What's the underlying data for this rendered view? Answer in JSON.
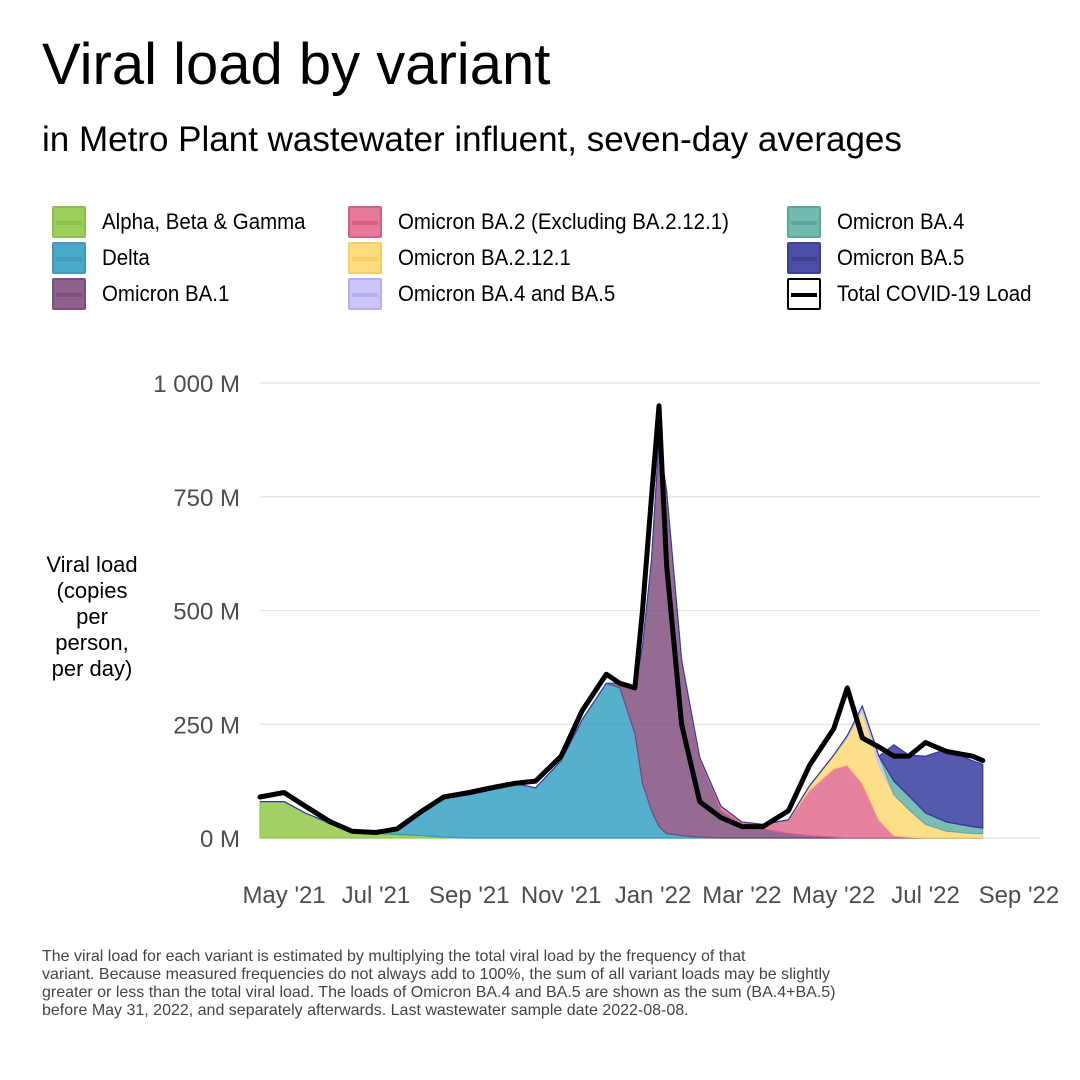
{
  "title": "Viral load by variant",
  "subtitle": "in Metro Plant wastewater influent, seven-day averages",
  "legend": [
    {
      "label": "Alpha, Beta & Gamma",
      "fill": "#8dc63f",
      "stroke": "#7ab32e",
      "icon": "alpha-beta-gamma-swatch-icon"
    },
    {
      "label": "Delta",
      "fill": "#2a9bc0",
      "stroke": "#2489b0",
      "icon": "delta-swatch-icon"
    },
    {
      "label": "Omicron BA.1",
      "fill": "#7b4679",
      "stroke": "#6b2e6b",
      "icon": "omicron-ba1-swatch-icon"
    },
    {
      "label": "Omicron BA.2 (Excluding BA.2.12.1)",
      "fill": "#e06288",
      "stroke": "#d0446e",
      "icon": "omicron-ba2-swatch-icon"
    },
    {
      "label": "Omicron BA.2.12.1",
      "fill": "#fdd66b",
      "stroke": "#f5c64a",
      "icon": "omicron-ba2121-swatch-icon"
    },
    {
      "label": "Omicron BA.4 and BA.5",
      "fill": "#c4bdf7",
      "stroke": "#a9a0f0",
      "icon": "omicron-ba4-ba5-swatch-icon"
    },
    {
      "label": "Omicron BA.4",
      "fill": "#5aada2",
      "stroke": "#3f9688",
      "icon": "omicron-ba4-swatch-icon"
    },
    {
      "label": "Omicron BA.5",
      "fill": "#2d2f9a",
      "stroke": "#1f1f80",
      "icon": "omicron-ba5-swatch-icon"
    },
    {
      "label": "Total COVID-19 Load",
      "fill": "#ffffff",
      "stroke": "#000000",
      "icon": "total-load-line-icon"
    }
  ],
  "y_axis_label": [
    "Viral load",
    "(copies",
    "per",
    "person,",
    "per day)"
  ],
  "caption": [
    "The viral load for each variant is estimated by multiplying the total viral load by the frequency of that",
    "variant. Because measured frequencies do not always add to 100%, the sum of all variant loads may be slightly",
    "greater or less than the total viral load. The loads of Omicron BA.4 and BA.5 are shown as the sum (BA.4+BA.5)",
    "before May 31, 2022, and separately afterwards. Last wastewater sample date 2022-08-08."
  ],
  "chart_data": {
    "type": "area",
    "stacked": true,
    "title": "Viral load by variant",
    "subtitle": "in Metro Plant wastewater influent, seven-day averages",
    "ylabel": "Viral load (copies per person, per day)",
    "ylim": [
      0,
      1000
    ],
    "y_unit": "M",
    "y_ticks": [
      0,
      250,
      500,
      750,
      1000
    ],
    "y_tick_labels": [
      "0 M",
      "250 M",
      "500 M",
      "750 M",
      "1 000 M"
    ],
    "x_tick_dates": [
      "2021-05-01",
      "2021-07-01",
      "2021-09-01",
      "2021-11-01",
      "2022-01-01",
      "2022-03-01",
      "2022-05-01",
      "2022-07-01",
      "2022-09-01"
    ],
    "x_tick_labels": [
      "May '21",
      "Jul '21",
      "Sep '21",
      "Nov '21",
      "Jan '22",
      "Mar '22",
      "May '22",
      "Jul '22",
      "Sep '22"
    ],
    "xlim": [
      "2021-04-15",
      "2022-09-15"
    ],
    "grid": "horizontal",
    "legend_position": "top",
    "x": [
      "2021-04-15",
      "2021-05-01",
      "2021-05-15",
      "2021-06-01",
      "2021-06-15",
      "2021-07-01",
      "2021-07-15",
      "2021-08-01",
      "2021-08-15",
      "2021-09-01",
      "2021-09-15",
      "2021-10-01",
      "2021-10-15",
      "2021-11-01",
      "2021-11-15",
      "2021-12-01",
      "2021-12-10",
      "2021-12-20",
      "2021-12-25",
      "2021-12-31",
      "2022-01-05",
      "2022-01-10",
      "2022-01-20",
      "2022-02-01",
      "2022-02-15",
      "2022-03-01",
      "2022-03-15",
      "2022-04-01",
      "2022-04-15",
      "2022-05-01",
      "2022-05-10",
      "2022-05-20",
      "2022-05-31",
      "2022-06-10",
      "2022-06-20",
      "2022-07-01",
      "2022-07-15",
      "2022-08-01",
      "2022-08-08"
    ],
    "series": [
      {
        "name": "Alpha, Beta & Gamma",
        "color": "#8dc63f",
        "values": [
          80,
          80,
          55,
          30,
          15,
          10,
          8,
          5,
          2,
          0,
          0,
          0,
          0,
          0,
          0,
          0,
          0,
          0,
          0,
          0,
          0,
          0,
          0,
          0,
          0,
          0,
          0,
          0,
          0,
          0,
          0,
          0,
          0,
          0,
          0,
          0,
          0,
          0,
          0
        ]
      },
      {
        "name": "Delta",
        "color": "#2a9bc0",
        "values": [
          0,
          0,
          0,
          2,
          3,
          5,
          15,
          60,
          85,
          95,
          105,
          120,
          110,
          170,
          260,
          340,
          330,
          230,
          120,
          60,
          25,
          10,
          5,
          2,
          0,
          0,
          0,
          0,
          0,
          0,
          0,
          0,
          0,
          0,
          0,
          0,
          0,
          0,
          0
        ]
      },
      {
        "name": "Omicron BA.1",
        "color": "#7b4679",
        "values": [
          0,
          0,
          0,
          0,
          0,
          0,
          0,
          0,
          0,
          0,
          0,
          0,
          0,
          0,
          0,
          0,
          10,
          100,
          300,
          550,
          850,
          750,
          380,
          170,
          60,
          30,
          20,
          10,
          5,
          2,
          0,
          0,
          0,
          0,
          0,
          0,
          0,
          0,
          0
        ]
      },
      {
        "name": "Omicron BA.2 (Excluding BA.2.12.1)",
        "color": "#e06288",
        "values": [
          0,
          0,
          0,
          0,
          0,
          0,
          0,
          0,
          0,
          0,
          0,
          0,
          0,
          0,
          0,
          0,
          0,
          0,
          0,
          0,
          0,
          2,
          5,
          5,
          10,
          5,
          10,
          30,
          100,
          150,
          160,
          120,
          40,
          5,
          2,
          0,
          0,
          0,
          0
        ]
      },
      {
        "name": "Omicron BA.2.12.1",
        "color": "#fdd66b",
        "values": [
          0,
          0,
          0,
          0,
          0,
          0,
          0,
          0,
          0,
          0,
          0,
          0,
          0,
          0,
          0,
          0,
          0,
          0,
          0,
          0,
          0,
          0,
          0,
          0,
          0,
          0,
          0,
          0,
          10,
          30,
          60,
          160,
          120,
          90,
          60,
          30,
          15,
          10,
          10
        ]
      },
      {
        "name": "Omicron BA.4 and BA.5",
        "color": "#c4bdf7",
        "values": [
          0,
          0,
          0,
          0,
          0,
          0,
          0,
          0,
          0,
          0,
          0,
          0,
          0,
          0,
          0,
          0,
          0,
          0,
          0,
          0,
          0,
          0,
          0,
          0,
          0,
          0,
          0,
          0,
          0,
          0,
          5,
          10,
          20,
          0,
          0,
          0,
          0,
          0,
          0
        ]
      },
      {
        "name": "Omicron BA.4",
        "color": "#5aada2",
        "values": [
          0,
          0,
          0,
          0,
          0,
          0,
          0,
          0,
          0,
          0,
          0,
          0,
          0,
          0,
          0,
          0,
          0,
          0,
          0,
          0,
          0,
          0,
          0,
          0,
          0,
          0,
          0,
          0,
          0,
          0,
          0,
          0,
          0,
          30,
          30,
          25,
          20,
          15,
          12
        ]
      },
      {
        "name": "Omicron BA.5",
        "color": "#2d2f9a",
        "values": [
          0,
          0,
          0,
          0,
          0,
          0,
          0,
          0,
          0,
          0,
          0,
          0,
          0,
          0,
          0,
          0,
          0,
          0,
          0,
          0,
          0,
          0,
          0,
          0,
          0,
          0,
          0,
          0,
          0,
          0,
          0,
          0,
          0,
          80,
          90,
          125,
          160,
          145,
          140
        ]
      }
    ],
    "total_line": {
      "name": "Total COVID-19 Load",
      "color": "#000000",
      "values": [
        90,
        100,
        70,
        35,
        15,
        12,
        20,
        60,
        90,
        100,
        110,
        120,
        125,
        180,
        280,
        360,
        340,
        330,
        500,
        750,
        950,
        600,
        250,
        80,
        45,
        25,
        25,
        60,
        160,
        240,
        330,
        220,
        200,
        180,
        180,
        210,
        190,
        180,
        170
      ]
    }
  }
}
